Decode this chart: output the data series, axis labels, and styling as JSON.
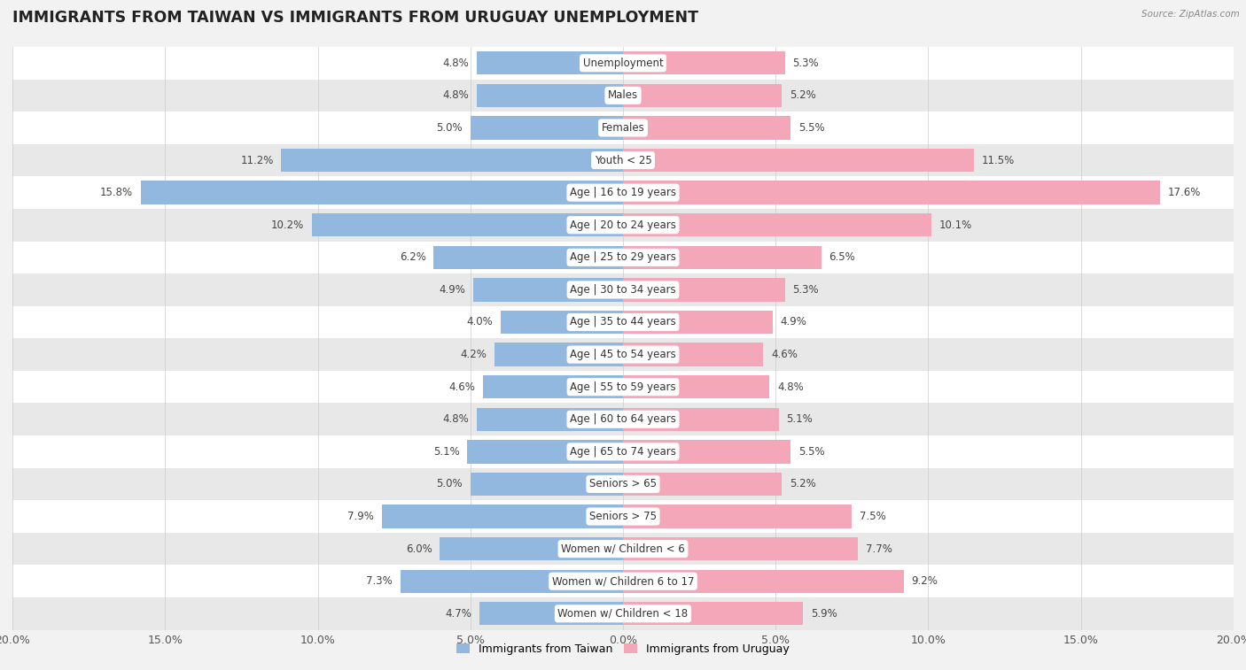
{
  "title": "IMMIGRANTS FROM TAIWAN VS IMMIGRANTS FROM URUGUAY UNEMPLOYMENT",
  "source": "Source: ZipAtlas.com",
  "categories": [
    "Unemployment",
    "Males",
    "Females",
    "Youth < 25",
    "Age | 16 to 19 years",
    "Age | 20 to 24 years",
    "Age | 25 to 29 years",
    "Age | 30 to 34 years",
    "Age | 35 to 44 years",
    "Age | 45 to 54 years",
    "Age | 55 to 59 years",
    "Age | 60 to 64 years",
    "Age | 65 to 74 years",
    "Seniors > 65",
    "Seniors > 75",
    "Women w/ Children < 6",
    "Women w/ Children 6 to 17",
    "Women w/ Children < 18"
  ],
  "taiwan_values": [
    4.8,
    4.8,
    5.0,
    11.2,
    15.8,
    10.2,
    6.2,
    4.9,
    4.0,
    4.2,
    4.6,
    4.8,
    5.1,
    5.0,
    7.9,
    6.0,
    7.3,
    4.7
  ],
  "uruguay_values": [
    5.3,
    5.2,
    5.5,
    11.5,
    17.6,
    10.1,
    6.5,
    5.3,
    4.9,
    4.6,
    4.8,
    5.1,
    5.5,
    5.2,
    7.5,
    7.7,
    9.2,
    5.9
  ],
  "taiwan_color": "#92b8e0",
  "uruguay_color": "#f4a7b9",
  "taiwan_label": "Immigrants from Taiwan",
  "uruguay_label": "Immigrants from Uruguay",
  "background_color": "#f2f2f2",
  "row_bg_white": "#ffffff",
  "row_bg_gray": "#e8e8e8",
  "xlim": 20.0,
  "bar_height": 0.72,
  "title_fontsize": 12.5,
  "label_fontsize": 8.5,
  "value_fontsize": 8.5,
  "axis_tick_fontsize": 9
}
